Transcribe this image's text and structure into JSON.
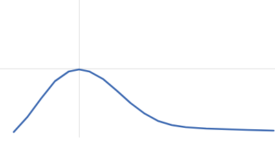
{
  "chart_data": {
    "type": "line",
    "x": [
      0.3,
      0.6,
      0.9,
      1.2,
      1.5,
      1.725,
      1.95,
      2.25,
      2.55,
      2.85,
      3.15,
      3.45,
      3.75,
      4.05,
      4.5,
      4.95,
      5.4,
      5.97
    ],
    "values": [
      0.088,
      0.33,
      0.627,
      0.902,
      1.056,
      1.089,
      1.056,
      0.935,
      0.748,
      0.55,
      0.385,
      0.264,
      0.198,
      0.165,
      0.143,
      0.132,
      0.121,
      0.11
    ],
    "color": "#3a67b0",
    "xlim": [
      0,
      6
    ],
    "xticks": [
      1.73
    ],
    "ylim": [
      0,
      2.2
    ],
    "yticks": [
      1.1
    ],
    "grid": true
  }
}
